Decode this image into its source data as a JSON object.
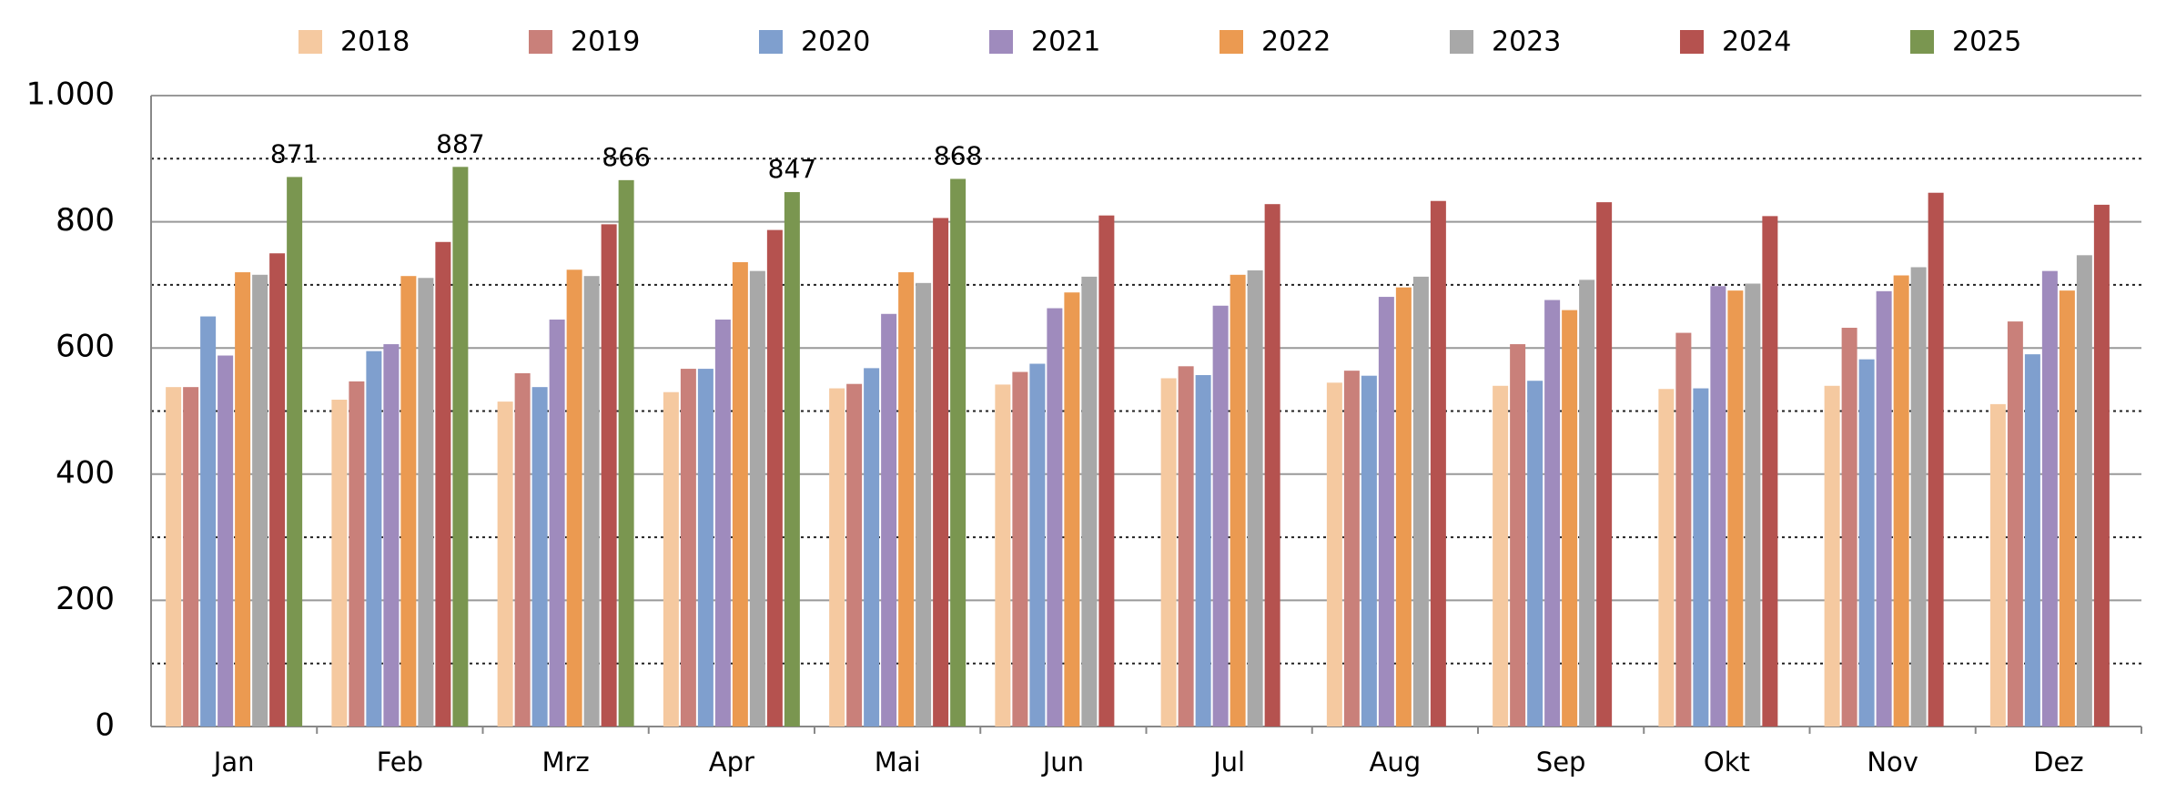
{
  "chart_data": {
    "type": "bar",
    "categories": [
      "Jan",
      "Feb",
      "Mrz",
      "Apr",
      "Mai",
      "Jun",
      "Jul",
      "Aug",
      "Sep",
      "Okt",
      "Nov",
      "Dez"
    ],
    "series": [
      {
        "name": "2018",
        "color": "#f5c9a0",
        "values": [
          538,
          518,
          515,
          530,
          536,
          542,
          552,
          545,
          540,
          535,
          540,
          511
        ]
      },
      {
        "name": "2019",
        "color": "#c9807a",
        "values": [
          538,
          547,
          560,
          567,
          543,
          562,
          571,
          564,
          606,
          624,
          632,
          642
        ]
      },
      {
        "name": "2020",
        "color": "#7f9fce",
        "values": [
          650,
          595,
          538,
          567,
          568,
          575,
          557,
          556,
          548,
          536,
          582,
          590
        ]
      },
      {
        "name": "2021",
        "color": "#9f8bbd",
        "values": [
          588,
          606,
          645,
          645,
          654,
          663,
          667,
          681,
          676,
          698,
          690,
          722
        ]
      },
      {
        "name": "2022",
        "color": "#eb9a51",
        "values": [
          720,
          714,
          724,
          736,
          720,
          688,
          716,
          696,
          660,
          691,
          715,
          691
        ]
      },
      {
        "name": "2023",
        "color": "#a8a8a8",
        "values": [
          716,
          711,
          714,
          722,
          703,
          713,
          723,
          713,
          708,
          702,
          728,
          747
        ]
      },
      {
        "name": "2024",
        "color": "#b5524f",
        "values": [
          750,
          768,
          796,
          787,
          806,
          810,
          828,
          833,
          831,
          809,
          846,
          827
        ]
      },
      {
        "name": "2025",
        "color": "#7a9650",
        "show_labels": true,
        "values": [
          871,
          887,
          866,
          847,
          868,
          null,
          null,
          null,
          null,
          null,
          null,
          null
        ]
      }
    ],
    "ylim": [
      0,
      1000
    ],
    "yticks": [
      0,
      200,
      400,
      600,
      800,
      {
        "value": 1000,
        "label": "1.000"
      }
    ],
    "minor_gridlines": [
      100,
      300,
      500,
      700,
      900
    ],
    "grid": true,
    "legend": "top"
  }
}
